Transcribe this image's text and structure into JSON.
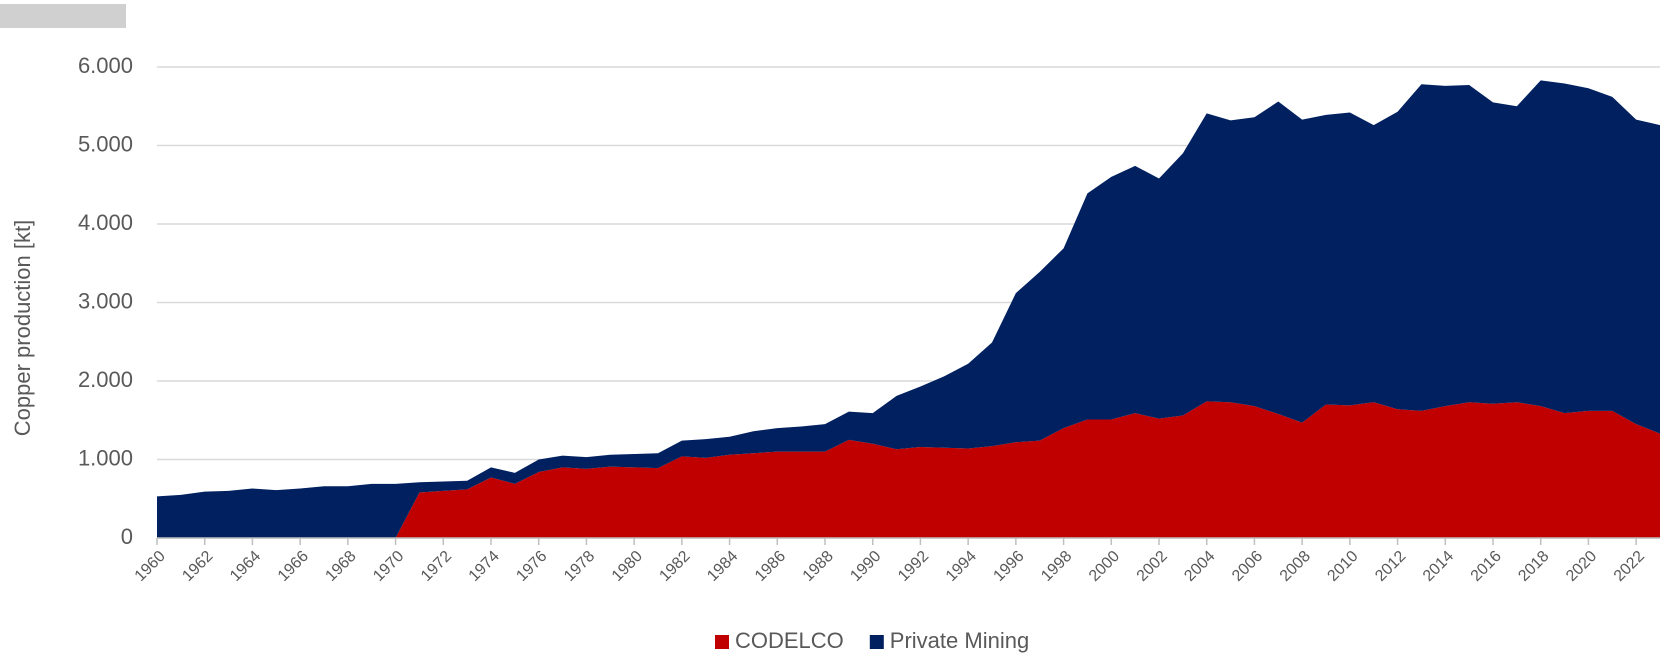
{
  "chart_data": {
    "type": "stacked-area",
    "y_label": "Copper production [kt]",
    "x": [
      1960,
      1961,
      1962,
      1963,
      1964,
      1965,
      1966,
      1967,
      1968,
      1969,
      1970,
      1971,
      1972,
      1973,
      1974,
      1975,
      1976,
      1977,
      1978,
      1979,
      1980,
      1981,
      1982,
      1983,
      1984,
      1985,
      1986,
      1987,
      1988,
      1989,
      1990,
      1991,
      1992,
      1993,
      1994,
      1995,
      1996,
      1997,
      1998,
      1999,
      2000,
      2001,
      2002,
      2003,
      2004,
      2005,
      2006,
      2007,
      2008,
      2009,
      2010,
      2011,
      2012,
      2013,
      2014,
      2015,
      2016,
      2017,
      2018,
      2019,
      2020,
      2021,
      2022,
      2023
    ],
    "series": [
      {
        "name": "CODELCO",
        "color": "#c00000",
        "values": [
          0,
          0,
          0,
          0,
          0,
          0,
          0,
          0,
          0,
          0,
          0,
          580,
          600,
          620,
          770,
          690,
          840,
          900,
          880,
          910,
          900,
          890,
          1040,
          1020,
          1060,
          1080,
          1100,
          1100,
          1100,
          1250,
          1200,
          1130,
          1160,
          1150,
          1140,
          1170,
          1220,
          1240,
          1400,
          1510,
          1510,
          1590,
          1520,
          1560,
          1740,
          1730,
          1680,
          1580,
          1470,
          1700,
          1690,
          1730,
          1640,
          1620,
          1680,
          1730,
          1710,
          1730,
          1680,
          1590,
          1620,
          1620,
          1450,
          1330
        ]
      },
      {
        "name": "Private Mining",
        "color": "#002060",
        "values": [
          530,
          550,
          590,
          600,
          630,
          610,
          630,
          660,
          660,
          690,
          690,
          130,
          120,
          110,
          130,
          140,
          160,
          150,
          150,
          150,
          170,
          190,
          200,
          240,
          230,
          280,
          300,
          320,
          350,
          360,
          390,
          680,
          770,
          910,
          1080,
          1320,
          1900,
          2150,
          2290,
          2880,
          3090,
          3150,
          3060,
          3340,
          3670,
          3590,
          3680,
          3980,
          3860,
          3690,
          3730,
          3530,
          3790,
          4160,
          4080,
          4040,
          3840,
          3770,
          4150,
          4200,
          4110,
          4000,
          3880,
          3930
        ]
      }
    ],
    "xlim": [
      1960,
      2023
    ],
    "xticks": [
      1960,
      1962,
      1964,
      1966,
      1968,
      1970,
      1972,
      1974,
      1976,
      1978,
      1980,
      1982,
      1984,
      1986,
      1988,
      1990,
      1992,
      1994,
      1996,
      1998,
      2000,
      2002,
      2004,
      2006,
      2008,
      2010,
      2012,
      2014,
      2016,
      2018,
      2020,
      2022
    ],
    "ylim": [
      0,
      6000
    ],
    "yticks": [
      0,
      {
        "value": 1000,
        "label": "1.000"
      },
      {
        "value": 2000,
        "label": "2.000"
      },
      {
        "value": 3000,
        "label": "3.000"
      },
      {
        "value": 4000,
        "label": "4.000"
      },
      {
        "value": 5000,
        "label": "5.000"
      },
      {
        "value": 6000,
        "label": "6.000"
      }
    ],
    "grid": true
  }
}
